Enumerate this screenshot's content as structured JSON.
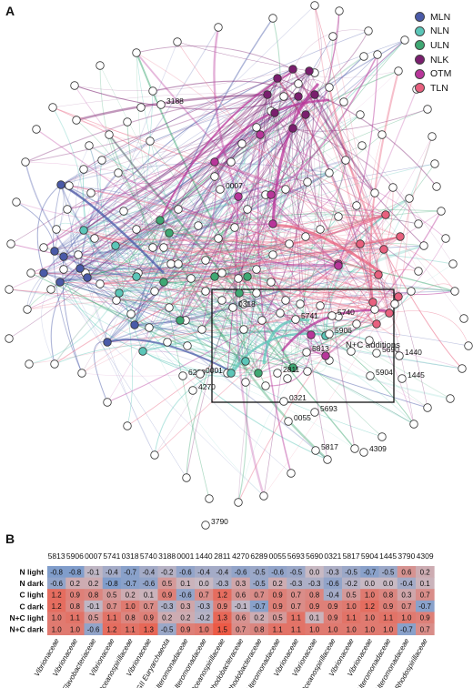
{
  "panel_a_label": "A",
  "panel_b_label": "B",
  "legend": [
    {
      "label": "MLN",
      "color": "#4a5aa8"
    },
    {
      "label": "NLN",
      "color": "#5bc6b8"
    },
    {
      "label": "ULN",
      "color": "#3fa873"
    },
    {
      "label": "NLK",
      "color": "#7a1e6e"
    },
    {
      "label": "OTM",
      "color": "#b8369a"
    },
    {
      "label": "TLN",
      "color": "#e8607e"
    }
  ],
  "network": {
    "box_label": "N+C additions",
    "node_labels": [
      "3188",
      "0007",
      "0318",
      "5741",
      "5740",
      "5906",
      "5813",
      "2811",
      "4270",
      "6289",
      "0001",
      "0321",
      "5690",
      "1440",
      "5904",
      "1445",
      "5693",
      "0055",
      "5817",
      "4309",
      "3790"
    ]
  },
  "heatmap": {
    "columns": [
      "5813",
      "5906",
      "0007",
      "5741",
      "0318",
      "5740",
      "3188",
      "0001",
      "1440",
      "2811",
      "4270",
      "6289",
      "0055",
      "5693",
      "5690",
      "0321",
      "5817",
      "5904",
      "1445",
      "3790",
      "4309"
    ],
    "rows": [
      {
        "label": "N light",
        "values": [
          -0.8,
          -0.8,
          -0.1,
          -0.4,
          -0.7,
          -0.4,
          -0.2,
          -0.6,
          -0.4,
          -0.4,
          -0.6,
          -0.5,
          -0.6,
          -0.5,
          0.0,
          -0.3,
          -0.5,
          -0.7,
          -0.5,
          0.6,
          0.2
        ]
      },
      {
        "label": "N dark",
        "values": [
          -0.6,
          0.2,
          0.2,
          -0.8,
          -0.7,
          -0.6,
          0.5,
          0.1,
          0.0,
          -0.3,
          0.3,
          -0.5,
          0.2,
          -0.3,
          -0.3,
          -0.6,
          -0.2,
          0.0,
          0.0,
          -0.4,
          0.1
        ]
      },
      {
        "label": "C light",
        "values": [
          1.2,
          0.9,
          0.8,
          0.5,
          0.2,
          0.1,
          0.9,
          -0.6,
          0.7,
          1.2,
          0.6,
          0.7,
          0.9,
          0.7,
          0.8,
          -0.4,
          0.5,
          1.0,
          0.8,
          0.3,
          0.7
        ]
      },
      {
        "label": "C dark",
        "values": [
          1.2,
          0.8,
          -0.1,
          0.7,
          1.0,
          0.7,
          -0.3,
          0.3,
          -0.3,
          0.9,
          -0.1,
          -0.7,
          0.9,
          0.7,
          0.9,
          0.9,
          1.0,
          1.2,
          0.9,
          0.7,
          -0.7
        ]
      },
      {
        "label": "N+C light",
        "values": [
          1.0,
          1.1,
          0.5,
          1.1,
          0.8,
          0.9,
          0.2,
          0.2,
          -0.2,
          1.3,
          0.6,
          0.2,
          0.5,
          1.1,
          0.1,
          0.9,
          1.1,
          1.0,
          1.1,
          1.0,
          0.9
        ]
      },
      {
        "label": "N+C dark",
        "values": [
          1.0,
          1.0,
          -0.6,
          1.2,
          1.1,
          1.3,
          -0.5,
          0.9,
          1.0,
          1.5,
          0.7,
          0.8,
          1.1,
          1.1,
          1.0,
          1.0,
          1.0,
          1.0,
          1.0,
          -0.7,
          0.7
        ]
      }
    ],
    "families": [
      "Vibrionaceae",
      "Vibrionaceae",
      "Flavobacteriaceae",
      "Vibrionaceae",
      "Oceanospirillaceae",
      "Vibrionaceae",
      "MGII Euryarchaeota",
      "Alteromonadaceae",
      "Alteromonadaceae",
      "Oceanospirillaceae",
      "Rhodobacteraceae",
      "Rhodobacteraceae",
      "Alteromonadaceae",
      "Vibrionaceae",
      "Vibrionaceae",
      "Oceanospirillaceae",
      "Vibrionaceae",
      "Vibrionaceae",
      "Alteromonadaceae",
      "Alteromonadaceae",
      "Rhodospirillaceae"
    ]
  }
}
